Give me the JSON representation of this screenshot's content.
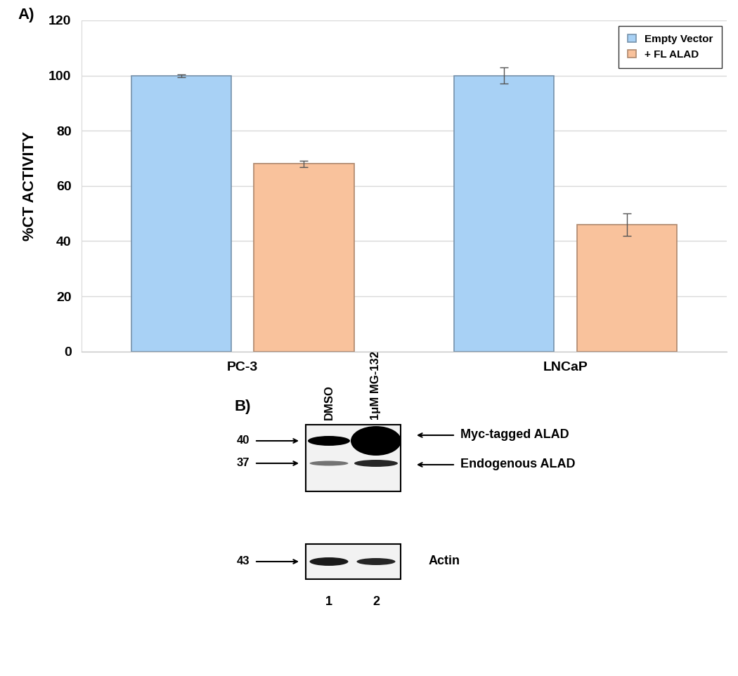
{
  "chart_data": {
    "type": "bar",
    "panel_label": "A)",
    "y_label": "%CT ACTIVITY",
    "categories": [
      "PC-3",
      "LNCaP"
    ],
    "series": [
      {
        "name": "Empty Vector",
        "color": "#a8d1f5",
        "values": [
          100,
          100
        ],
        "errors": [
          0.5,
          3
        ]
      },
      {
        "name": "+ FL ALAD",
        "color": "#f9c29c",
        "values": [
          68,
          46
        ],
        "errors": [
          1.2,
          4
        ]
      }
    ],
    "ylim": [
      0,
      120
    ],
    "yticks": [
      0,
      20,
      40,
      60,
      80,
      100,
      120
    ],
    "grid": true,
    "legend": "upper right"
  },
  "blot_panel": {
    "panel_label": "B)",
    "lanes": [
      {
        "label": "DMSO",
        "number": 1
      },
      {
        "label": "1μM MG-132",
        "number": 2
      }
    ],
    "blots": [
      {
        "markers": [
          {
            "size": 40,
            "band": "Myc-tagged ALAD",
            "label_arrow": true
          },
          {
            "size": 37,
            "band": "Endogenous ALAD",
            "label_arrow": true
          }
        ]
      },
      {
        "markers": [
          {
            "size": 43,
            "band": "Actin",
            "label_arrow": false
          }
        ]
      }
    ]
  }
}
